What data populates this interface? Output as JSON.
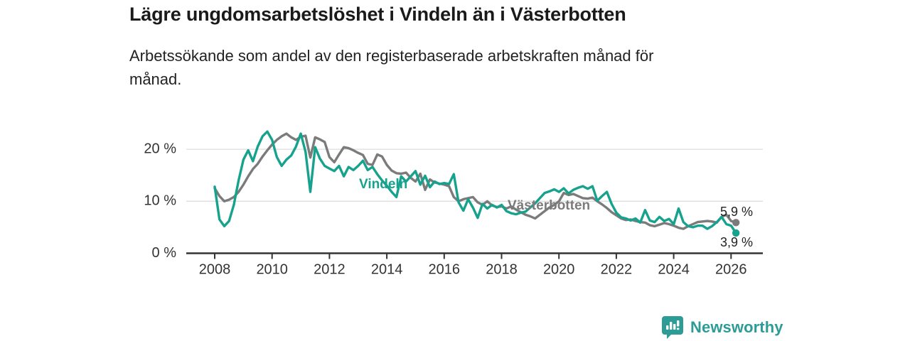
{
  "header": {
    "title": "Lägre ungdomsarbetslöshet i Vindeln än i Västerbotten",
    "subtitle": "Arbetssökande som andel av den registerbaserade arbetskraften månad för månad."
  },
  "chart_data": {
    "type": "line",
    "title": "Lägre ungdomsarbetslöshet i Vindeln än i Västerbotten",
    "xlabel": "",
    "ylabel": "Arbetssökande som andel av den registerbaserade arbetskraften",
    "x_unit": "year (monthly data)",
    "x_start": 2008.0,
    "x_step": 0.1667,
    "xlim": [
      2008,
      2026.6
    ],
    "ylim": [
      0,
      25
    ],
    "grid": "horizontal",
    "x_ticks": [
      "2008",
      "2010",
      "2012",
      "2014",
      "2016",
      "2018",
      "2020",
      "2022",
      "2024",
      "2026"
    ],
    "x_tick_years": [
      2008,
      2010,
      2012,
      2014,
      2016,
      2018,
      2020,
      2022,
      2024,
      2026
    ],
    "y_ticks": [
      {
        "value": 20,
        "label": "20 %",
        "grid": true
      },
      {
        "value": 10,
        "label": "10 %",
        "grid": true
      },
      {
        "value": 0,
        "label": "0 %",
        "grid": false
      }
    ],
    "axis_color": "#333333",
    "grid_color": "#dedede",
    "legend_position": "inline-labels",
    "series": [
      {
        "name": "Vindeln",
        "color": "#17a28e",
        "end_label": "3,9 %",
        "end_value": 3.9,
        "values": [
          12.8,
          6.5,
          5.2,
          6.2,
          9.3,
          14.0,
          18.0,
          19.8,
          17.7,
          20.5,
          22.5,
          23.4,
          21.8,
          18.5,
          16.8,
          18.0,
          18.8,
          20.5,
          23.0,
          19.5,
          11.8,
          20.4,
          18.2,
          16.8,
          16.3,
          15.8,
          16.8,
          14.8,
          16.6,
          16.0,
          16.8,
          17.8,
          16.0,
          16.6,
          15.2,
          14.0,
          13.0,
          11.8,
          10.8,
          14.8,
          13.8,
          14.8,
          15.8,
          13.2,
          14.9,
          12.7,
          13.8,
          13.3,
          13.5,
          13.3,
          15.2,
          9.8,
          8.2,
          10.4,
          8.8,
          6.8,
          9.5,
          8.6,
          9.3,
          8.8,
          9.3,
          8.1,
          7.7,
          7.5,
          7.8,
          8.0,
          8.8,
          9.6,
          10.6,
          11.6,
          11.9,
          12.3,
          11.8,
          12.5,
          11.5,
          12.2,
          12.6,
          12.9,
          12.4,
          12.9,
          10.1,
          11.0,
          11.8,
          9.5,
          7.8,
          6.9,
          6.7,
          6.3,
          6.7,
          5.9,
          8.3,
          6.3,
          6.0,
          7.0,
          6.2,
          6.6,
          5.6,
          8.6,
          6.0,
          5.2,
          5.0,
          5.3,
          5.3,
          4.7,
          5.2,
          6.0,
          7.0,
          5.6,
          5.3,
          3.9
        ]
      },
      {
        "name": "Västerbotten",
        "color": "#7b7b7b",
        "end_label": "5,9 %",
        "end_value": 5.9,
        "values": [
          12.5,
          11.0,
          10.0,
          10.3,
          10.8,
          11.8,
          13.2,
          14.8,
          16.2,
          17.2,
          18.6,
          19.8,
          20.9,
          21.8,
          22.5,
          23.0,
          22.3,
          21.8,
          22.4,
          22.6,
          18.4,
          22.3,
          21.9,
          21.4,
          18.5,
          17.5,
          19.0,
          20.4,
          20.2,
          19.8,
          19.3,
          18.9,
          17.2,
          17.0,
          19.0,
          18.6,
          17.0,
          15.9,
          15.4,
          15.3,
          15.5,
          14.5,
          13.8,
          15.3,
          12.2,
          14.2,
          13.6,
          13.4,
          13.2,
          12.9,
          10.8,
          10.0,
          10.4,
          10.6,
          10.8,
          9.8,
          9.3,
          10.0,
          9.2,
          8.9,
          9.0,
          8.6,
          9.0,
          8.4,
          7.9,
          7.4,
          7.1,
          6.7,
          7.4,
          8.1,
          8.8,
          9.3,
          10.0,
          11.6,
          11.2,
          11.4,
          11.0,
          10.6,
          10.5,
          10.7,
          10.0,
          9.4,
          8.7,
          7.9,
          7.3,
          6.7,
          6.4,
          6.5,
          6.2,
          6.0,
          5.9,
          5.4,
          5.2,
          5.5,
          5.8,
          5.6,
          5.3,
          4.9,
          4.7,
          5.2,
          5.6,
          6.0,
          6.1,
          6.2,
          6.1,
          5.9,
          7.0,
          7.4,
          6.2,
          5.9
        ]
      }
    ]
  },
  "footer": {
    "brand": "Newsworthy",
    "brand_color": "#2e9c96"
  }
}
